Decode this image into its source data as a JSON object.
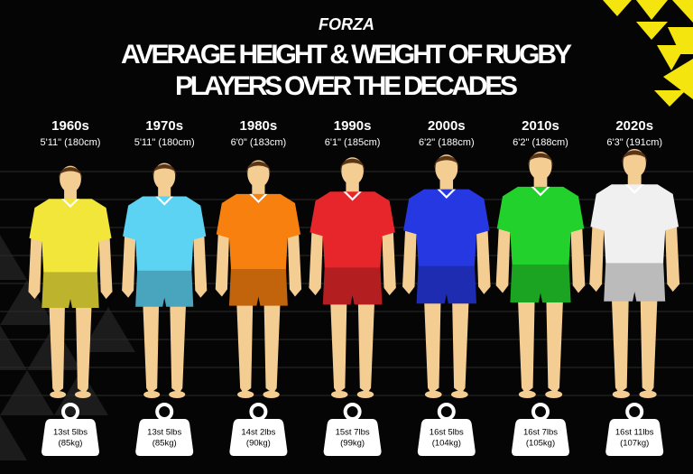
{
  "header": {
    "brand": "FORZA",
    "title_lines": [
      "AVERAGE HEIGHT & WEIGHT OF RUGBY",
      "PLAYERS OVER THE DECADES"
    ]
  },
  "players": [
    {
      "decade": "1960s",
      "height": "5'11\" (180cm)",
      "weight": "13st 5lbs",
      "weight_metric": "(85kg)",
      "color": "#f2e63a"
    },
    {
      "decade": "1970s",
      "height": "5'11\" (180cm)",
      "weight": "13st 5lbs",
      "weight_metric": "(85kg)",
      "color": "#5cd3f2"
    },
    {
      "decade": "1980s",
      "height": "6'0\" (183cm)",
      "weight": "14st 2lbs",
      "weight_metric": "(90kg)",
      "color": "#f7800f"
    },
    {
      "decade": "1990s",
      "height": "6'1\" (185cm)",
      "weight": "15st 7lbs",
      "weight_metric": "(99kg)",
      "color": "#e6262a"
    },
    {
      "decade": "2000s",
      "height": "6'2\" (188cm)",
      "weight": "16st 5lbs",
      "weight_metric": "(104kg)",
      "color": "#2538e2"
    },
    {
      "decade": "2010s",
      "height": "6'2\" (188cm)",
      "weight": "16st 7lbs",
      "weight_metric": "(105kg)",
      "color": "#22d12b"
    },
    {
      "decade": "2020s",
      "height": "6'3\" (191cm)",
      "weight": "16st 11lbs",
      "weight_metric": "(107kg)",
      "color": "#f0f0f0"
    }
  ]
}
